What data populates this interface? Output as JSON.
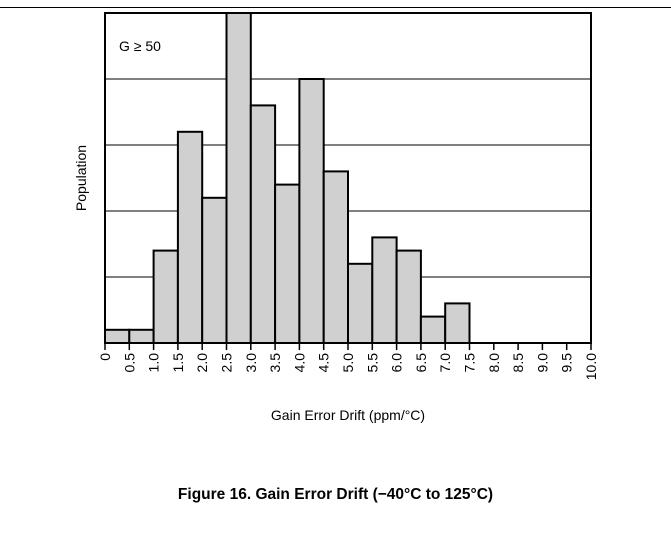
{
  "figure_caption": "Figure 16. Gain Error Drift (−40°C to 125°C)",
  "colors": {
    "bar_fill": "#d0d0d0",
    "bar_stroke": "#000000",
    "grid": "#000000",
    "background": "#ffffff"
  },
  "chart_data": {
    "type": "bar",
    "title": "",
    "annotation": "G ≥ 50",
    "xlabel": "Gain Error Drift (ppm/°C)",
    "ylabel": "Population",
    "x_ticks": [
      "0",
      "0.5",
      "1.0",
      "1.5",
      "2.0",
      "2.5",
      "3.0",
      "3.5",
      "4.0",
      "4.5",
      "5.0",
      "5.5",
      "6.0",
      "6.5",
      "7.0",
      "7.5",
      "8.0",
      "8.5",
      "9.0",
      "9.5",
      "10.0"
    ],
    "xlim": [
      0,
      10
    ],
    "ylim": [
      0,
      100
    ],
    "bin_width": 0.5,
    "bins": [
      {
        "start": 0.0,
        "end": 0.5,
        "value": 4
      },
      {
        "start": 0.5,
        "end": 1.0,
        "value": 4
      },
      {
        "start": 1.0,
        "end": 1.5,
        "value": 28
      },
      {
        "start": 1.5,
        "end": 2.0,
        "value": 64
      },
      {
        "start": 2.0,
        "end": 2.5,
        "value": 44
      },
      {
        "start": 2.5,
        "end": 3.0,
        "value": 100
      },
      {
        "start": 3.0,
        "end": 3.5,
        "value": 72
      },
      {
        "start": 3.5,
        "end": 4.0,
        "value": 48
      },
      {
        "start": 4.0,
        "end": 4.5,
        "value": 80
      },
      {
        "start": 4.5,
        "end": 5.0,
        "value": 52
      },
      {
        "start": 5.0,
        "end": 5.5,
        "value": 24
      },
      {
        "start": 5.5,
        "end": 6.0,
        "value": 32
      },
      {
        "start": 6.0,
        "end": 6.5,
        "value": 28
      },
      {
        "start": 6.5,
        "end": 7.0,
        "value": 8
      },
      {
        "start": 7.0,
        "end": 7.5,
        "value": 12
      }
    ],
    "gridlines_y": [
      20,
      40,
      60,
      80,
      100
    ],
    "grid": true,
    "y_tick_labels": false
  }
}
